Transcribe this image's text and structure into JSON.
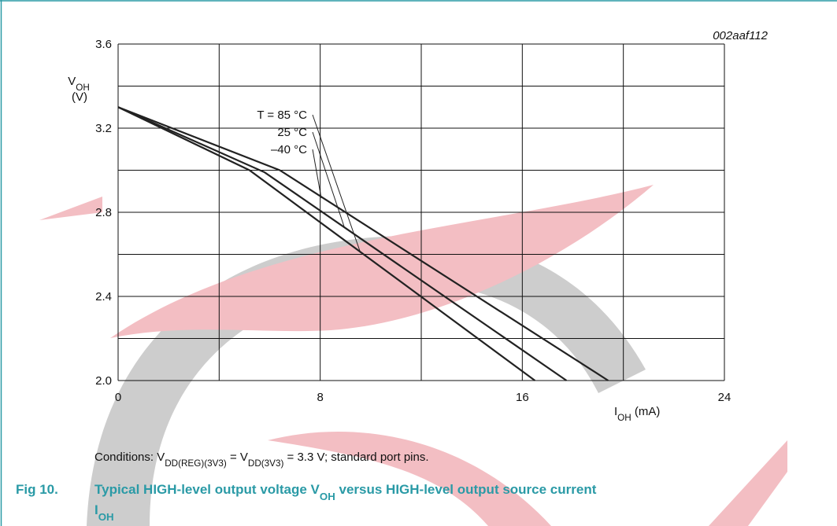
{
  "chart_data": {
    "type": "line",
    "id_label": "002aaf112",
    "ylabel": [
      {
        "text": "V"
      },
      {
        "text": "OH",
        "sub": true
      }
    ],
    "ylabel_unit": "(V)",
    "xlabel": [
      {
        "text": "I"
      },
      {
        "text": "OH",
        "sub": true
      },
      {
        "text": " (mA)"
      }
    ],
    "xlim": [
      0,
      24
    ],
    "xticks": [
      0,
      8,
      16,
      24
    ],
    "xgrid": [
      4,
      12,
      20
    ],
    "ylim": [
      2.0,
      3.6
    ],
    "yticks": [
      {
        "value": 2,
        "label": "2.0"
      },
      2.4,
      2.8,
      3.2,
      3.6
    ],
    "ygrid": [
      2.2,
      2.6,
      3.0,
      3.4
    ],
    "grid": true,
    "series": [
      {
        "color": "#222222",
        "x": [
          0,
          5.2,
          16.5
        ],
        "values": [
          3.3,
          3.0,
          2.0
        ]
      },
      {
        "color": "#222222",
        "x": [
          0,
          5.8,
          17.75
        ],
        "values": [
          3.3,
          2.99,
          2.0
        ]
      },
      {
        "color": "#222222",
        "x": [
          0,
          6.4,
          19.4
        ],
        "values": [
          3.3,
          3.0,
          2.0
        ]
      }
    ],
    "annotations": [
      "T = 85 °C",
      "25 °C",
      "–40 °C"
    ],
    "conditions": [
      {
        "text": "Conditions: V"
      },
      {
        "text": "DD(REG)(3V3)",
        "sub": true
      },
      {
        "text": " = V"
      },
      {
        "text": "DD(3V3)",
        "sub": true
      },
      {
        "text": " = 3.3 V; standard port pins."
      }
    ],
    "caption_number": "Fig 10.",
    "caption_line1": [
      {
        "text": "Typical HIGH-level output voltage V"
      },
      {
        "text": "OH",
        "sub": true
      },
      {
        "text": " versus HIGH-level output source current"
      }
    ],
    "caption_line2": [
      {
        "text": "I"
      },
      {
        "text": "OH",
        "sub": true
      }
    ]
  }
}
